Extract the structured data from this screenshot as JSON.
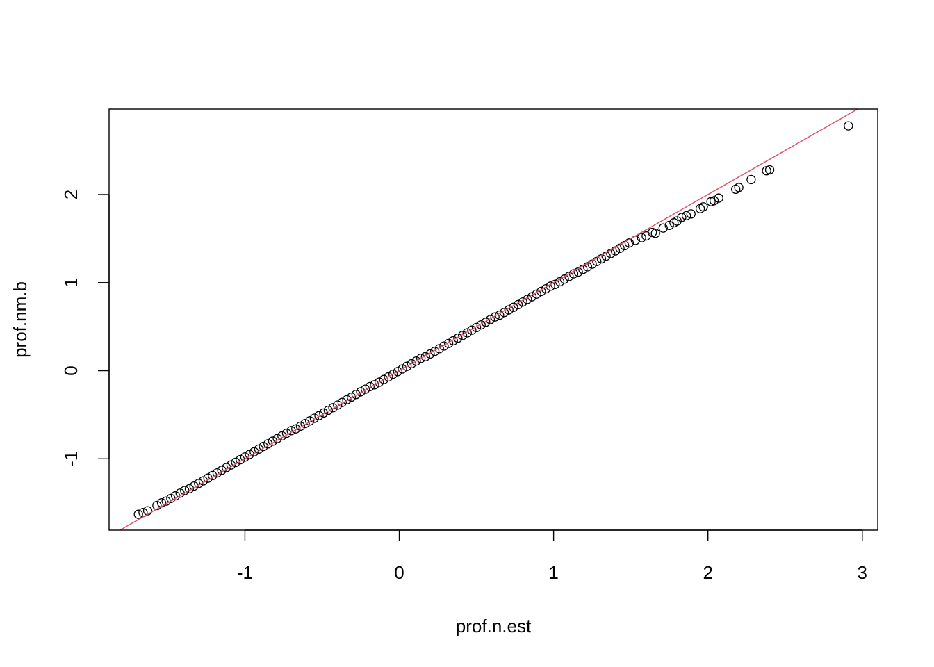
{
  "chart_data": {
    "type": "scatter",
    "title": "",
    "xlabel": "prof.n.est",
    "ylabel": "prof.nm.b",
    "xlim": [
      -1.88,
      3.1
    ],
    "ylim": [
      -1.81,
      2.97
    ],
    "x_ticks": [
      -1,
      0,
      1,
      2,
      3
    ],
    "x_tick_labels": [
      "-1",
      "0",
      "1",
      "2",
      "3"
    ],
    "y_ticks": [
      -1,
      0,
      1,
      2
    ],
    "y_tick_labels": [
      "-1",
      "0",
      "1",
      "2"
    ],
    "grid": false,
    "legend": "none",
    "reference_line": {
      "slope": 1,
      "intercept": 0,
      "color": "#DF536B"
    },
    "point_color": "#000000",
    "points": [
      [
        -1.69,
        -1.63
      ],
      [
        -1.66,
        -1.61
      ],
      [
        -1.63,
        -1.59
      ],
      [
        -1.57,
        -1.53
      ],
      [
        -1.54,
        -1.5
      ],
      [
        -1.51,
        -1.48
      ],
      [
        -1.48,
        -1.45
      ],
      [
        -1.45,
        -1.42
      ],
      [
        -1.42,
        -1.39
      ],
      [
        -1.39,
        -1.36
      ],
      [
        -1.36,
        -1.34
      ],
      [
        -1.33,
        -1.31
      ],
      [
        -1.3,
        -1.28
      ],
      [
        -1.27,
        -1.25
      ],
      [
        -1.24,
        -1.22
      ],
      [
        -1.21,
        -1.19
      ],
      [
        -1.18,
        -1.16
      ],
      [
        -1.15,
        -1.13
      ],
      [
        -1.12,
        -1.1
      ],
      [
        -1.09,
        -1.07
      ],
      [
        -1.06,
        -1.04
      ],
      [
        -1.03,
        -1.01
      ],
      [
        -1.0,
        -0.98
      ],
      [
        -0.97,
        -0.95
      ],
      [
        -0.94,
        -0.92
      ],
      [
        -0.91,
        -0.89
      ],
      [
        -0.88,
        -0.86
      ],
      [
        -0.85,
        -0.83
      ],
      [
        -0.82,
        -0.8
      ],
      [
        -0.79,
        -0.77
      ],
      [
        -0.76,
        -0.74
      ],
      [
        -0.73,
        -0.71
      ],
      [
        -0.7,
        -0.68
      ],
      [
        -0.67,
        -0.66
      ],
      [
        -0.64,
        -0.63
      ],
      [
        -0.61,
        -0.6
      ],
      [
        -0.58,
        -0.57
      ],
      [
        -0.55,
        -0.54
      ],
      [
        -0.52,
        -0.51
      ],
      [
        -0.49,
        -0.48
      ],
      [
        -0.46,
        -0.45
      ],
      [
        -0.43,
        -0.42
      ],
      [
        -0.4,
        -0.39
      ],
      [
        -0.37,
        -0.36
      ],
      [
        -0.34,
        -0.33
      ],
      [
        -0.31,
        -0.3
      ],
      [
        -0.28,
        -0.27
      ],
      [
        -0.25,
        -0.24
      ],
      [
        -0.22,
        -0.21
      ],
      [
        -0.19,
        -0.18
      ],
      [
        -0.16,
        -0.16
      ],
      [
        -0.13,
        -0.13
      ],
      [
        -0.1,
        -0.1
      ],
      [
        -0.07,
        -0.07
      ],
      [
        -0.04,
        -0.04
      ],
      [
        -0.01,
        -0.01
      ],
      [
        0.02,
        0.02
      ],
      [
        0.05,
        0.05
      ],
      [
        0.08,
        0.08
      ],
      [
        0.11,
        0.11
      ],
      [
        0.14,
        0.14
      ],
      [
        0.17,
        0.16
      ],
      [
        0.2,
        0.19
      ],
      [
        0.23,
        0.22
      ],
      [
        0.26,
        0.25
      ],
      [
        0.29,
        0.28
      ],
      [
        0.32,
        0.31
      ],
      [
        0.35,
        0.34
      ],
      [
        0.38,
        0.37
      ],
      [
        0.41,
        0.4
      ],
      [
        0.44,
        0.43
      ],
      [
        0.47,
        0.46
      ],
      [
        0.5,
        0.49
      ],
      [
        0.53,
        0.52
      ],
      [
        0.56,
        0.55
      ],
      [
        0.59,
        0.58
      ],
      [
        0.62,
        0.61
      ],
      [
        0.65,
        0.63
      ],
      [
        0.68,
        0.66
      ],
      [
        0.71,
        0.69
      ],
      [
        0.74,
        0.72
      ],
      [
        0.77,
        0.75
      ],
      [
        0.8,
        0.78
      ],
      [
        0.83,
        0.81
      ],
      [
        0.86,
        0.84
      ],
      [
        0.89,
        0.87
      ],
      [
        0.92,
        0.9
      ],
      [
        0.95,
        0.93
      ],
      [
        0.98,
        0.96
      ],
      [
        1.01,
        0.98
      ],
      [
        1.04,
        1.01
      ],
      [
        1.07,
        1.04
      ],
      [
        1.1,
        1.07
      ],
      [
        1.13,
        1.1
      ],
      [
        1.16,
        1.12
      ],
      [
        1.19,
        1.15
      ],
      [
        1.22,
        1.18
      ],
      [
        1.25,
        1.21
      ],
      [
        1.28,
        1.24
      ],
      [
        1.31,
        1.27
      ],
      [
        1.34,
        1.3
      ],
      [
        1.37,
        1.33
      ],
      [
        1.4,
        1.36
      ],
      [
        1.43,
        1.39
      ],
      [
        1.46,
        1.42
      ],
      [
        1.49,
        1.45
      ],
      [
        1.53,
        1.48
      ],
      [
        1.57,
        1.51
      ],
      [
        1.6,
        1.53
      ],
      [
        1.64,
        1.57
      ],
      [
        1.66,
        1.56
      ],
      [
        1.71,
        1.62
      ],
      [
        1.75,
        1.65
      ],
      [
        1.78,
        1.68
      ],
      [
        1.8,
        1.7
      ],
      [
        1.83,
        1.74
      ],
      [
        1.86,
        1.76
      ],
      [
        1.89,
        1.78
      ],
      [
        1.95,
        1.84
      ],
      [
        1.97,
        1.86
      ],
      [
        2.02,
        1.92
      ],
      [
        2.04,
        1.93
      ],
      [
        2.07,
        1.96
      ],
      [
        2.18,
        2.06
      ],
      [
        2.2,
        2.08
      ],
      [
        2.28,
        2.17
      ],
      [
        2.38,
        2.27
      ],
      [
        2.4,
        2.28
      ],
      [
        2.91,
        2.78
      ]
    ]
  }
}
